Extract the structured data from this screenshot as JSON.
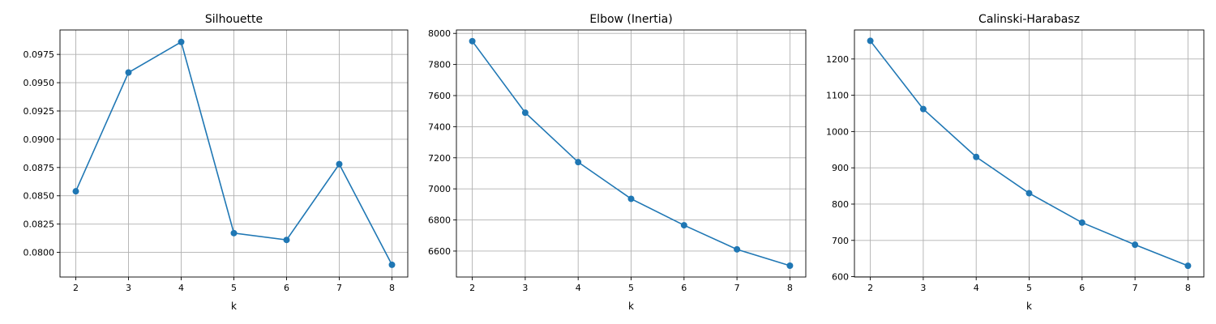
{
  "chart_data": [
    {
      "type": "line",
      "title": "Silhouette",
      "xlabel": "k",
      "ylabel": "",
      "x": [
        2,
        3,
        4,
        5,
        6,
        7,
        8
      ],
      "series": [
        {
          "values": [
            0.0854,
            0.0959,
            0.0986,
            0.0817,
            0.0811,
            0.0878,
            0.0789
          ]
        }
      ],
      "xticks": [
        2,
        3,
        4,
        5,
        6,
        7,
        8
      ],
      "yticks": [
        "0.0800",
        "0.0825",
        "0.0850",
        "0.0875",
        "0.0900",
        "0.0925",
        "0.0950",
        "0.0975"
      ],
      "xlim": [
        1.7,
        8.3
      ],
      "ylim": [
        0.07782,
        0.09966
      ],
      "grid": true,
      "marker": "circle",
      "color": "#1f77b4"
    },
    {
      "type": "line",
      "title": "Elbow (Inertia)",
      "xlabel": "k",
      "ylabel": "",
      "x": [
        2,
        3,
        4,
        5,
        6,
        7,
        8
      ],
      "series": [
        {
          "values": [
            7950,
            7490,
            7172,
            6936,
            6766,
            6611,
            6506
          ]
        }
      ],
      "xticks": [
        2,
        3,
        4,
        5,
        6,
        7,
        8
      ],
      "yticks": [
        "6600",
        "6800",
        "7000",
        "7200",
        "7400",
        "7600",
        "7800",
        "8000"
      ],
      "xlim": [
        1.7,
        8.3
      ],
      "ylim": [
        6433,
        8022
      ],
      "grid": true,
      "marker": "circle",
      "color": "#1f77b4"
    },
    {
      "type": "line",
      "title": "Calinski-Harabasz",
      "xlabel": "k",
      "ylabel": "",
      "x": [
        2,
        3,
        4,
        5,
        6,
        7,
        8
      ],
      "series": [
        {
          "values": [
            1250,
            1062,
            930,
            830,
            749,
            688,
            630
          ]
        }
      ],
      "xticks": [
        2,
        3,
        4,
        5,
        6,
        7,
        8
      ],
      "yticks": [
        "600",
        "700",
        "800",
        "900",
        "1000",
        "1100",
        "1200"
      ],
      "xlim": [
        1.7,
        8.3
      ],
      "ylim": [
        599,
        1280
      ],
      "grid": true,
      "marker": "circle",
      "color": "#1f77b4"
    }
  ]
}
